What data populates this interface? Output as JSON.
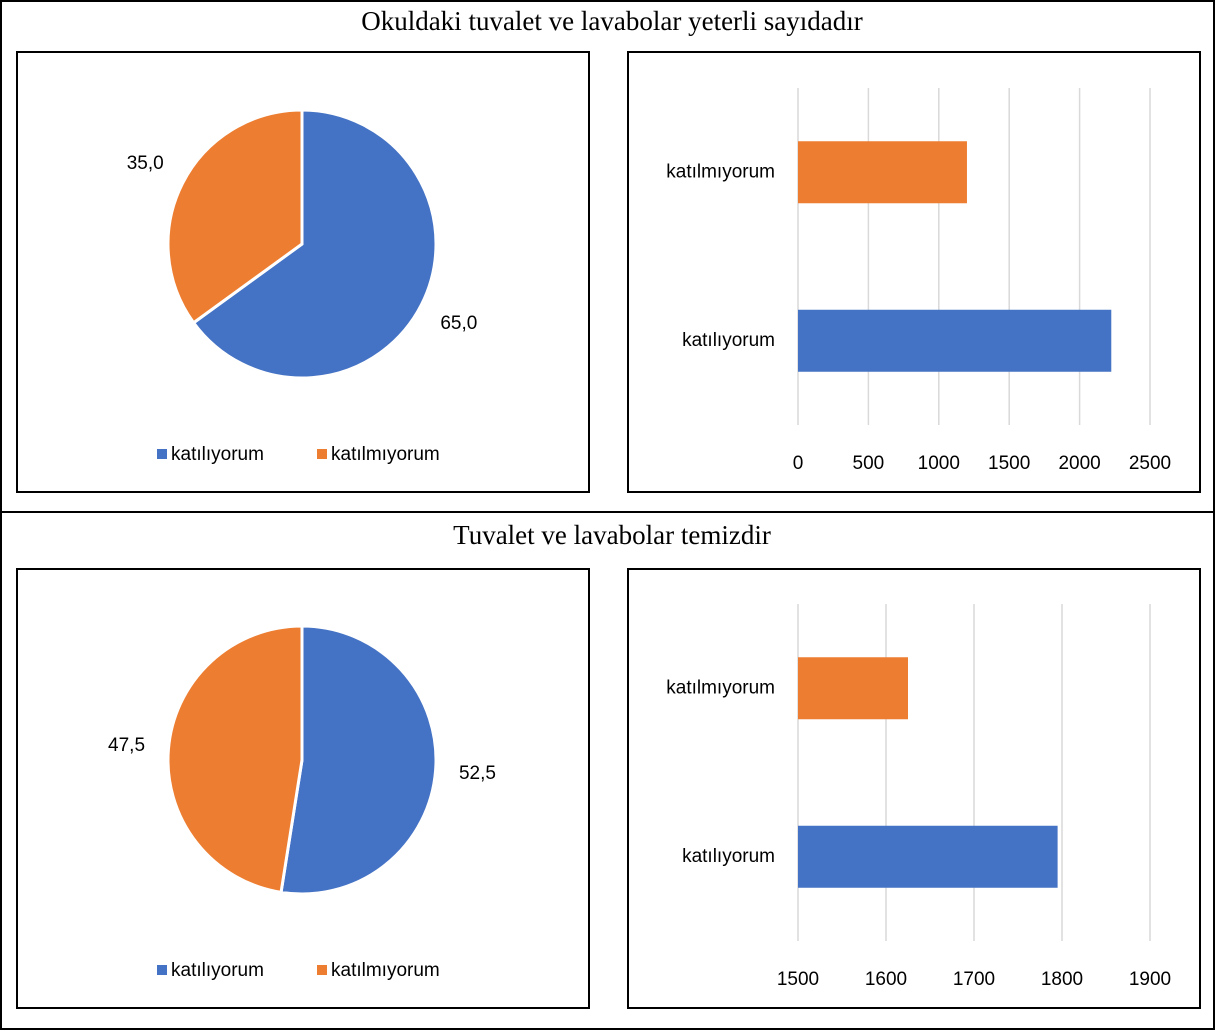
{
  "section_titles": [
    "Okuldaki tuvalet ve lavabolar yeterli sayıdadır",
    "Tuvalet ve lavabolar temizdir"
  ],
  "chart_data": [
    {
      "type": "pie",
      "categories": [
        "katılıyorum",
        "katılmıyorum"
      ],
      "values": [
        65.0,
        35.0
      ],
      "value_labels": [
        "65,0",
        "35,0"
      ],
      "colors": [
        "#4472c4",
        "#ed7d31"
      ]
    },
    {
      "type": "hbar",
      "categories": [
        "katılıyorum",
        "katılmıyorum"
      ],
      "values": [
        2225,
        1200
      ],
      "colors": [
        "#4472c4",
        "#ed7d31"
      ],
      "xlim": [
        0,
        2500
      ],
      "xticks": [
        0,
        500,
        1000,
        1500,
        2000,
        2500
      ],
      "grid": true
    },
    {
      "type": "pie",
      "categories": [
        "katılıyorum",
        "katılmıyorum"
      ],
      "values": [
        52.5,
        47.5
      ],
      "value_labels": [
        "52,5",
        "47,5"
      ],
      "colors": [
        "#4472c4",
        "#ed7d31"
      ]
    },
    {
      "type": "hbar",
      "categories": [
        "katılıyorum",
        "katılmıyorum"
      ],
      "values": [
        1795,
        1625
      ],
      "colors": [
        "#4472c4",
        "#ed7d31"
      ],
      "xlim": [
        1500,
        1900
      ],
      "xticks": [
        1500,
        1600,
        1700,
        1800,
        1900
      ],
      "grid": true
    }
  ]
}
